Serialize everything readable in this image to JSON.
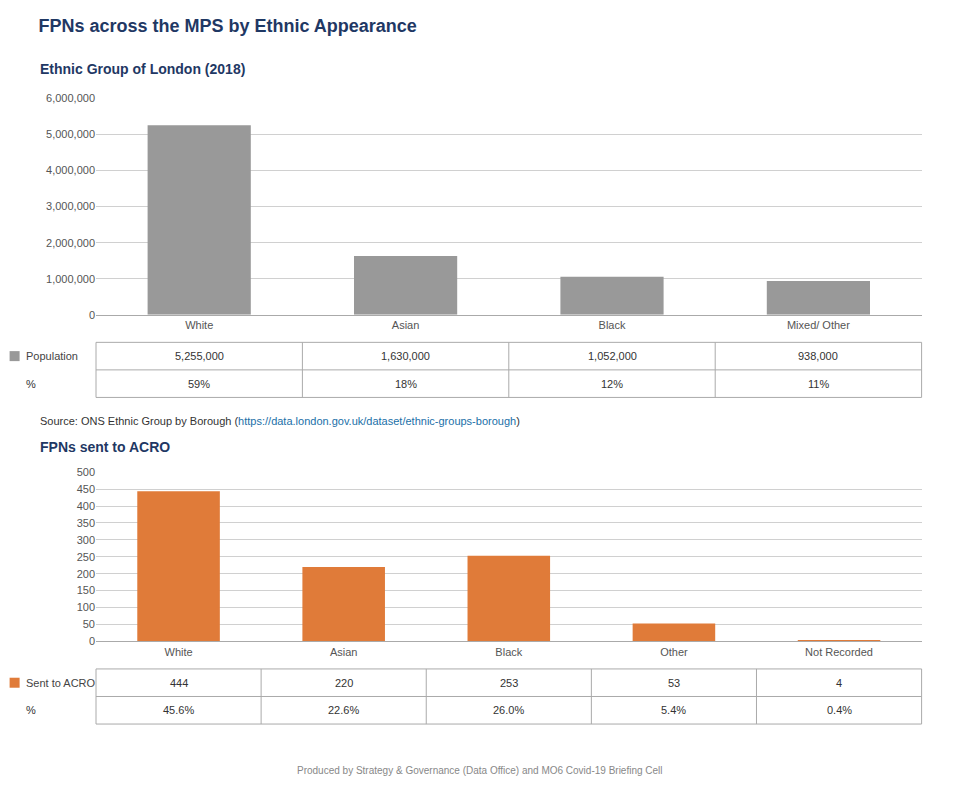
{
  "title": "FPNs across the MPS by Ethnic Appearance",
  "footer": "Produced by Strategy & Governance (Data Office) and MO6 Covid-19 Briefing Cell",
  "source": [
    "Source: ONS Ethnic Group by Borough (",
    "https://data.london.gov.uk/dataset/ethnic-groups-borough",
    ")"
  ],
  "chart_data": [
    {
      "type": "bar",
      "subtitle": "Ethnic Group of London (2018)",
      "categories": [
        "White",
        "Asian",
        "Black",
        "Mixed/ Other"
      ],
      "series": [
        {
          "name": "Population",
          "color": "#999999",
          "values": [
            5255000,
            1630000,
            1052000,
            938000
          ],
          "value_labels": [
            "5,255,000",
            "1,630,000",
            "1,052,000",
            "938,000"
          ]
        }
      ],
      "shares": {
        "name": "%",
        "values": [
          59,
          18,
          12,
          11
        ],
        "value_labels": [
          "59%",
          "18%",
          "12%",
          "11%"
        ]
      },
      "ylim": [
        0,
        6000000
      ],
      "yticks": [
        0,
        {
          "value": 1000000,
          "label": "1,000,000"
        },
        {
          "value": 2000000,
          "label": "2,000,000"
        },
        {
          "value": 3000000,
          "label": "3,000,000"
        },
        {
          "value": 4000000,
          "label": "4,000,000"
        },
        {
          "value": 5000000,
          "label": "5,000,000"
        },
        {
          "value": 6000000,
          "label": "6,000,000"
        }
      ],
      "grid": true
    },
    {
      "type": "bar",
      "subtitle": "FPNs sent to ACRO",
      "categories": [
        "White",
        "Asian",
        "Black",
        "Other",
        "Not Recorded"
      ],
      "series": [
        {
          "name": "Sent to ACRO",
          "color": "#e07b39",
          "values": [
            444,
            220,
            253,
            53,
            4
          ],
          "value_labels": [
            "444",
            "220",
            "253",
            "53",
            "4"
          ]
        }
      ],
      "shares": {
        "name": "%",
        "values": [
          45.6,
          22.6,
          26.0,
          5.4,
          0.4
        ],
        "value_labels": [
          "45.6%",
          "22.6%",
          "26.0%",
          "5.4%",
          "0.4%"
        ]
      },
      "ylim": [
        0,
        500
      ],
      "yticks": [
        0,
        50,
        100,
        150,
        200,
        250,
        300,
        350,
        400,
        450,
        500
      ],
      "grid": true
    }
  ]
}
